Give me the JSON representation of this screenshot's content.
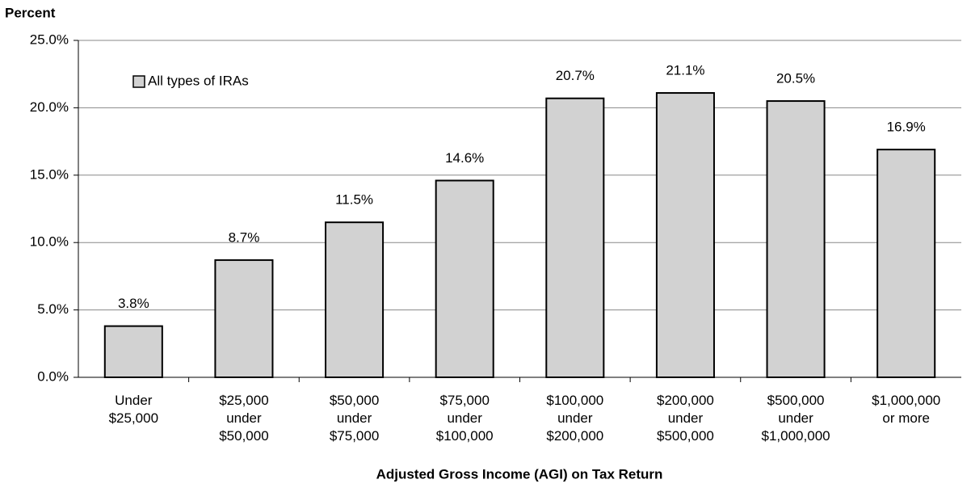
{
  "chart_data": {
    "type": "bar",
    "y_label": "Percent",
    "x_label": "Adjusted Gross Income (AGI) on Tax Return",
    "categories": [
      "Under\n$25,000",
      "$25,000\nunder\n$50,000",
      "$50,000\nunder\n$75,000",
      "$75,000\nunder\n$100,000",
      "$100,000\nunder\n$200,000",
      "$200,000\nunder\n$500,000",
      "$500,000\nunder\n$1,000,000",
      "$1,000,000\nor more"
    ],
    "series": [
      {
        "name": "All types of IRAs",
        "color": "#d2d2d2",
        "values": [
          3.8,
          8.7,
          11.5,
          14.6,
          20.7,
          21.1,
          20.5,
          16.9
        ],
        "value_labels": [
          "3.8%",
          "8.7%",
          "11.5%",
          "14.6%",
          "20.7%",
          "21.1%",
          "20.5%",
          "16.9%"
        ]
      }
    ],
    "ylim": [
      0,
      25
    ],
    "yticks": [
      {
        "value": 0,
        "label": "0.0%"
      },
      {
        "value": 5,
        "label": "5.0%"
      },
      {
        "value": 10,
        "label": "10.0%"
      },
      {
        "value": 15,
        "label": "15.0%"
      },
      {
        "value": 20,
        "label": "20.0%"
      },
      {
        "value": 25,
        "label": "25.0%"
      }
    ],
    "grid": true,
    "legend": "upper left"
  }
}
